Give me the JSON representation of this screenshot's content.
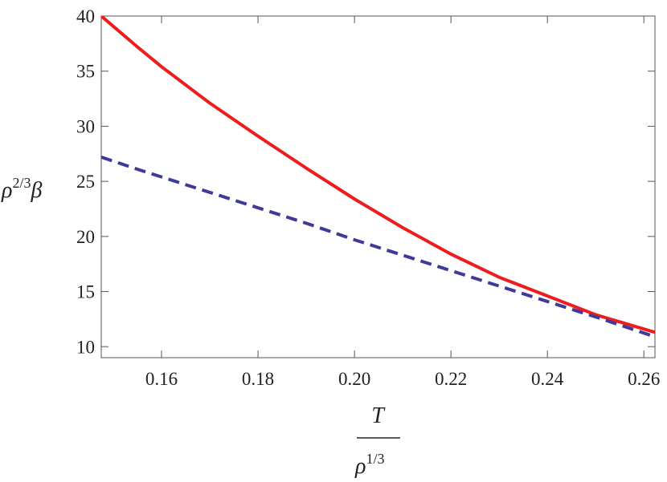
{
  "chart_data": {
    "type": "line",
    "x": [
      0.1475,
      0.155,
      0.16,
      0.17,
      0.18,
      0.19,
      0.2,
      0.21,
      0.22,
      0.23,
      0.24,
      0.25,
      0.2623
    ],
    "series": [
      {
        "color": "#ee1c1c",
        "dash": "solid",
        "values": [
          40,
          37.2,
          35.4,
          32.1,
          29.1,
          26.2,
          23.4,
          20.8,
          18.4,
          16.3,
          14.6,
          12.9,
          11.3
        ]
      },
      {
        "color": "#3d3a99",
        "dash": "dashed",
        "values": [
          27.2,
          26.1,
          25.4,
          24.0,
          22.6,
          21.2,
          19.7,
          18.3,
          16.9,
          15.5,
          14.1,
          12.7,
          10.9
        ]
      }
    ],
    "xlim": [
      0.1475,
      0.2623
    ],
    "ylim": [
      9,
      40
    ],
    "xticks": [
      0.16,
      0.18,
      {
        "value": 0.2,
        "label": "0.20"
      },
      0.22,
      0.24,
      0.26
    ],
    "yticks": [
      10,
      15,
      20,
      25,
      30,
      35,
      40
    ],
    "ylabel": {
      "base": "ρ",
      "sup": "2/3",
      "tail": "β"
    },
    "xlabel": {
      "numerator": "T",
      "base": "ρ",
      "sup": "1/3"
    }
  }
}
